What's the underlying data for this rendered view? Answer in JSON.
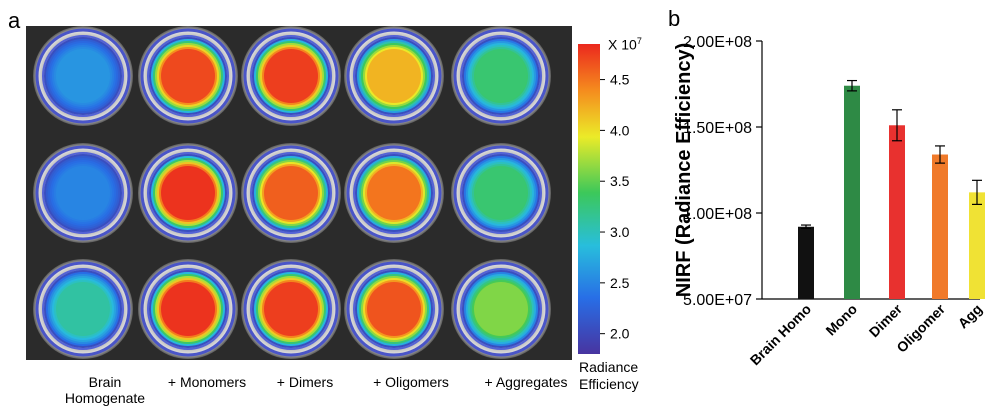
{
  "panel_a": {
    "letter": "a",
    "columns": [
      "Brain\nHomogenate",
      "+ Monomers",
      "+ Dimers",
      "+ Oligomers",
      "+ Aggregates"
    ],
    "column_label_1": "Brain",
    "column_label_1b": "Homogenate",
    "column_label_2": "+ Monomers",
    "column_label_3": "+ Dimers",
    "column_label_4": "+ Oligomers",
    "column_label_5": "+ Aggregates",
    "colorbar": {
      "multiplier_base": "X 10",
      "multiplier_exp": "7",
      "ticks": [
        "4.5",
        "4.0",
        "3.5",
        "3.0",
        "2.5",
        "2.0"
      ],
      "tick_values": [
        4.5,
        4.0,
        3.5,
        3.0,
        2.5,
        2.0
      ],
      "range": [
        1.8,
        4.85
      ],
      "caption_line1": "Radiance",
      "caption_line2": "Efficiency"
    },
    "wells": [
      [
        2.6,
        4.7,
        4.75,
        4.2,
        3.3
      ],
      [
        2.5,
        4.8,
        4.6,
        4.5,
        3.3
      ],
      [
        3.1,
        4.8,
        4.75,
        4.65,
        3.6
      ]
    ]
  },
  "chart_data": {
    "type": "bar",
    "letter": "b",
    "categories": [
      "Brain Homo",
      "Mono",
      "Dimer",
      "Oligomer",
      "Agg"
    ],
    "values": [
      92000000,
      174000000,
      151000000,
      134000000,
      112000000
    ],
    "errors": [
      1000000,
      3000000,
      9000000,
      5000000,
      7000000
    ],
    "colors": [
      "#111111",
      "#2e8a45",
      "#e8312f",
      "#f07a2a",
      "#f0e234"
    ],
    "ylabel": "NIRF (Radiance Efficiency)",
    "ylim": [
      50000000,
      200000000
    ],
    "yticks": [
      50000000,
      100000000,
      150000000,
      200000000
    ],
    "ytick_labels": [
      "5.00E+07",
      "1.00E+08",
      "1.50E+08",
      "2.00E+08"
    ]
  }
}
